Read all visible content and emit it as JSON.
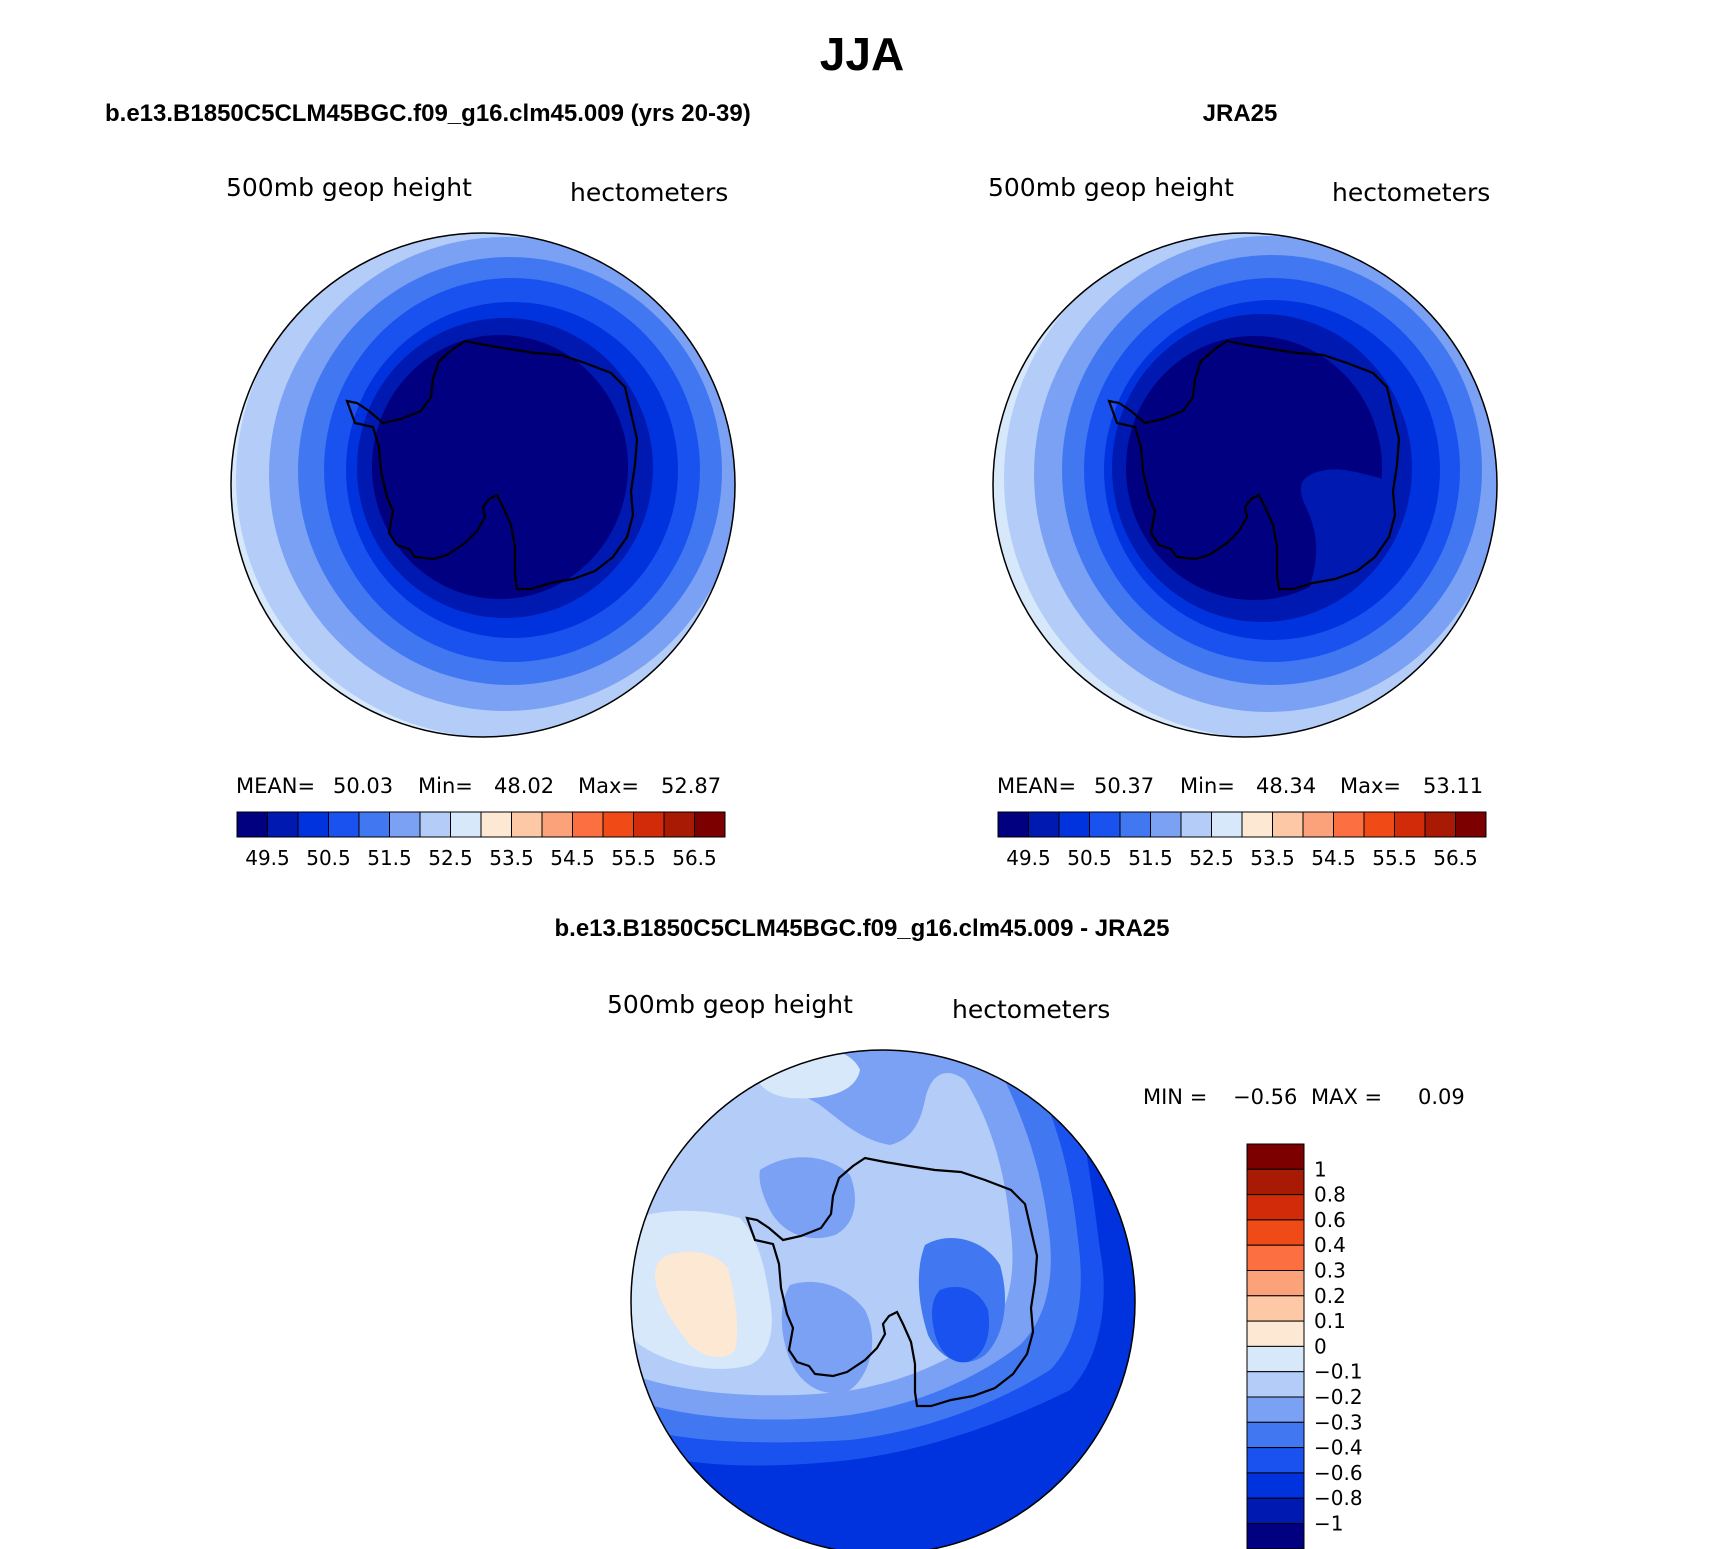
{
  "title": "JJA",
  "colors": {
    "scale": [
      "#000080",
      "#0019b0",
      "#0033dd",
      "#1a52f0",
      "#4178f2",
      "#7ba1f4",
      "#b3cdf8",
      "#d6e8fa",
      "#fde8d4",
      "#fcc8a6",
      "#fca27a",
      "#fb6f40",
      "#f04b17",
      "#d12b0a",
      "#a81a04",
      "#7d0000"
    ],
    "diff_scale": [
      "#000080",
      "#0019b0",
      "#0033dd",
      "#1a52f0",
      "#4178f2",
      "#7ba1f4",
      "#b3cdf8",
      "#d6e8fa",
      "#fde8d4",
      "#fcc8a6",
      "#fca27a",
      "#fb6f40",
      "#f04b17",
      "#d12b0a",
      "#a81a04",
      "#7d0000"
    ],
    "coast": "#000000"
  },
  "panels": [
    {
      "title": "b.e13.B1850C5CLM45BGC.f09_g16.clm45.009 (yrs 20-39)",
      "left_label": "500mb geop height",
      "right_label": "hectometers",
      "stats": {
        "mean_label": "MEAN=",
        "mean": "50.03",
        "min_label": "Min=",
        "min": "48.02",
        "max_label": "Max=",
        "max": "52.87"
      },
      "ticks": [
        "49.5",
        "50.5",
        "51.5",
        "52.5",
        "53.5",
        "54.5",
        "55.5",
        "56.5"
      ]
    },
    {
      "title": "JRA25",
      "left_label": "500mb geop height",
      "right_label": "hectometers",
      "stats": {
        "mean_label": "MEAN=",
        "mean": "50.37",
        "min_label": "Min=",
        "min": "48.34",
        "max_label": "Max=",
        "max": "53.11"
      },
      "ticks": [
        "49.5",
        "50.5",
        "51.5",
        "52.5",
        "53.5",
        "54.5",
        "55.5",
        "56.5"
      ]
    }
  ],
  "diff": {
    "title": "b.e13.B1850C5CLM45BGC.f09_g16.clm45.009 - JRA25",
    "left_label": "500mb geop height",
    "right_label": "hectometers",
    "min_label": "MIN =",
    "min": "−0.56",
    "max_label": "MAX =",
    "max": "0.09",
    "ticks": [
      "1",
      "0.8",
      "0.6",
      "0.4",
      "0.3",
      "0.2",
      "0.1",
      "0",
      "−0.1",
      "−0.2",
      "−0.3",
      "−0.4",
      "−0.6",
      "−0.8",
      "−1"
    ]
  }
}
